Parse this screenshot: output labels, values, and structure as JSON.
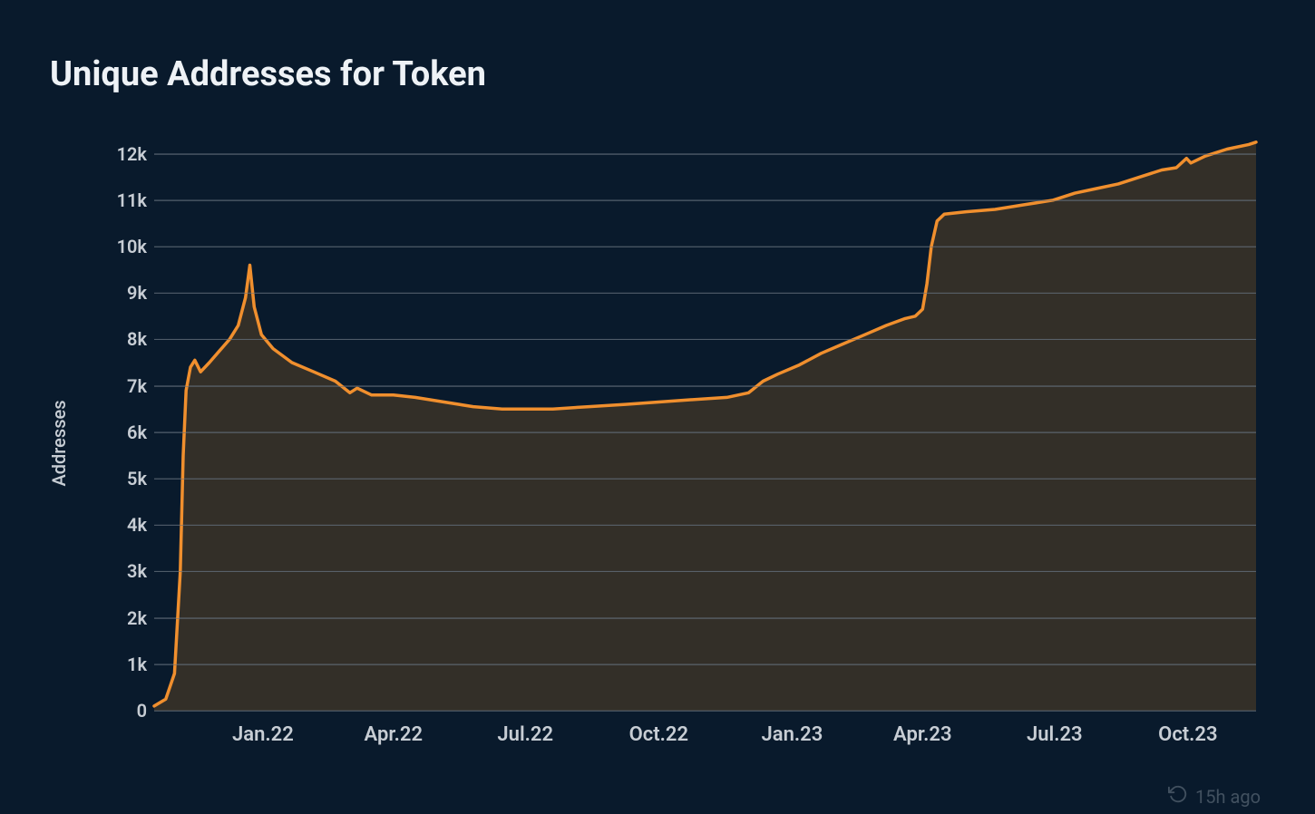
{
  "title": "Unique Addresses for Token",
  "footer_text": "15h ago",
  "chart": {
    "type": "area",
    "ylabel": "Addresses",
    "ylim": [
      0,
      12500
    ],
    "ytick_step": 1000,
    "yticks": [
      {
        "v": 0,
        "label": "0"
      },
      {
        "v": 1000,
        "label": "1k"
      },
      {
        "v": 2000,
        "label": "2k"
      },
      {
        "v": 3000,
        "label": "3k"
      },
      {
        "v": 4000,
        "label": "4k"
      },
      {
        "v": 5000,
        "label": "5k"
      },
      {
        "v": 6000,
        "label": "6k"
      },
      {
        "v": 7000,
        "label": "7k"
      },
      {
        "v": 8000,
        "label": "8k"
      },
      {
        "v": 9000,
        "label": "9k"
      },
      {
        "v": 10000,
        "label": "10k"
      },
      {
        "v": 11000,
        "label": "11k"
      },
      {
        "v": 12000,
        "label": "12k"
      }
    ],
    "xlim": [
      0,
      760
    ],
    "xticks": [
      {
        "x": 75,
        "label": "Jan.22"
      },
      {
        "x": 165,
        "label": "Apr.22"
      },
      {
        "x": 256,
        "label": "Jul.22"
      },
      {
        "x": 348,
        "label": "Oct.22"
      },
      {
        "x": 440,
        "label": "Jan.23"
      },
      {
        "x": 530,
        "label": "Apr.23"
      },
      {
        "x": 621,
        "label": "Jul.23"
      },
      {
        "x": 713,
        "label": "Oct.23"
      }
    ],
    "line_color": "#f08f2e",
    "line_width": 3.5,
    "fill_color": "#332f28",
    "background_color": "#091a2c",
    "grid_color": "#64707c",
    "label_fontsize": 20,
    "tick_fontsize": 20,
    "title_fontsize": 38,
    "series": [
      {
        "x": 0,
        "y": 100
      },
      {
        "x": 8,
        "y": 250
      },
      {
        "x": 14,
        "y": 800
      },
      {
        "x": 18,
        "y": 3000
      },
      {
        "x": 20,
        "y": 5500
      },
      {
        "x": 22,
        "y": 6900
      },
      {
        "x": 25,
        "y": 7400
      },
      {
        "x": 28,
        "y": 7550
      },
      {
        "x": 32,
        "y": 7300
      },
      {
        "x": 38,
        "y": 7500
      },
      {
        "x": 45,
        "y": 7750
      },
      {
        "x": 52,
        "y": 8000
      },
      {
        "x": 58,
        "y": 8300
      },
      {
        "x": 63,
        "y": 8900
      },
      {
        "x": 66,
        "y": 9600
      },
      {
        "x": 69,
        "y": 8700
      },
      {
        "x": 74,
        "y": 8100
      },
      {
        "x": 82,
        "y": 7800
      },
      {
        "x": 95,
        "y": 7500
      },
      {
        "x": 110,
        "y": 7300
      },
      {
        "x": 125,
        "y": 7100
      },
      {
        "x": 135,
        "y": 6850
      },
      {
        "x": 140,
        "y": 6950
      },
      {
        "x": 150,
        "y": 6800
      },
      {
        "x": 165,
        "y": 6800
      },
      {
        "x": 180,
        "y": 6750
      },
      {
        "x": 200,
        "y": 6650
      },
      {
        "x": 220,
        "y": 6550
      },
      {
        "x": 240,
        "y": 6500
      },
      {
        "x": 256,
        "y": 6500
      },
      {
        "x": 275,
        "y": 6500
      },
      {
        "x": 300,
        "y": 6550
      },
      {
        "x": 325,
        "y": 6600
      },
      {
        "x": 348,
        "y": 6650
      },
      {
        "x": 370,
        "y": 6700
      },
      {
        "x": 395,
        "y": 6750
      },
      {
        "x": 410,
        "y": 6850
      },
      {
        "x": 420,
        "y": 7100
      },
      {
        "x": 430,
        "y": 7250
      },
      {
        "x": 445,
        "y": 7450
      },
      {
        "x": 460,
        "y": 7700
      },
      {
        "x": 475,
        "y": 7900
      },
      {
        "x": 490,
        "y": 8100
      },
      {
        "x": 505,
        "y": 8300
      },
      {
        "x": 518,
        "y": 8450
      },
      {
        "x": 525,
        "y": 8500
      },
      {
        "x": 530,
        "y": 8650
      },
      {
        "x": 533,
        "y": 9200
      },
      {
        "x": 536,
        "y": 10000
      },
      {
        "x": 540,
        "y": 10550
      },
      {
        "x": 545,
        "y": 10700
      },
      {
        "x": 560,
        "y": 10750
      },
      {
        "x": 580,
        "y": 10800
      },
      {
        "x": 600,
        "y": 10900
      },
      {
        "x": 620,
        "y": 11000
      },
      {
        "x": 635,
        "y": 11150
      },
      {
        "x": 650,
        "y": 11250
      },
      {
        "x": 665,
        "y": 11350
      },
      {
        "x": 680,
        "y": 11500
      },
      {
        "x": 695,
        "y": 11650
      },
      {
        "x": 705,
        "y": 11700
      },
      {
        "x": 712,
        "y": 11900
      },
      {
        "x": 715,
        "y": 11800
      },
      {
        "x": 725,
        "y": 11950
      },
      {
        "x": 740,
        "y": 12100
      },
      {
        "x": 755,
        "y": 12200
      },
      {
        "x": 760,
        "y": 12250
      }
    ]
  }
}
